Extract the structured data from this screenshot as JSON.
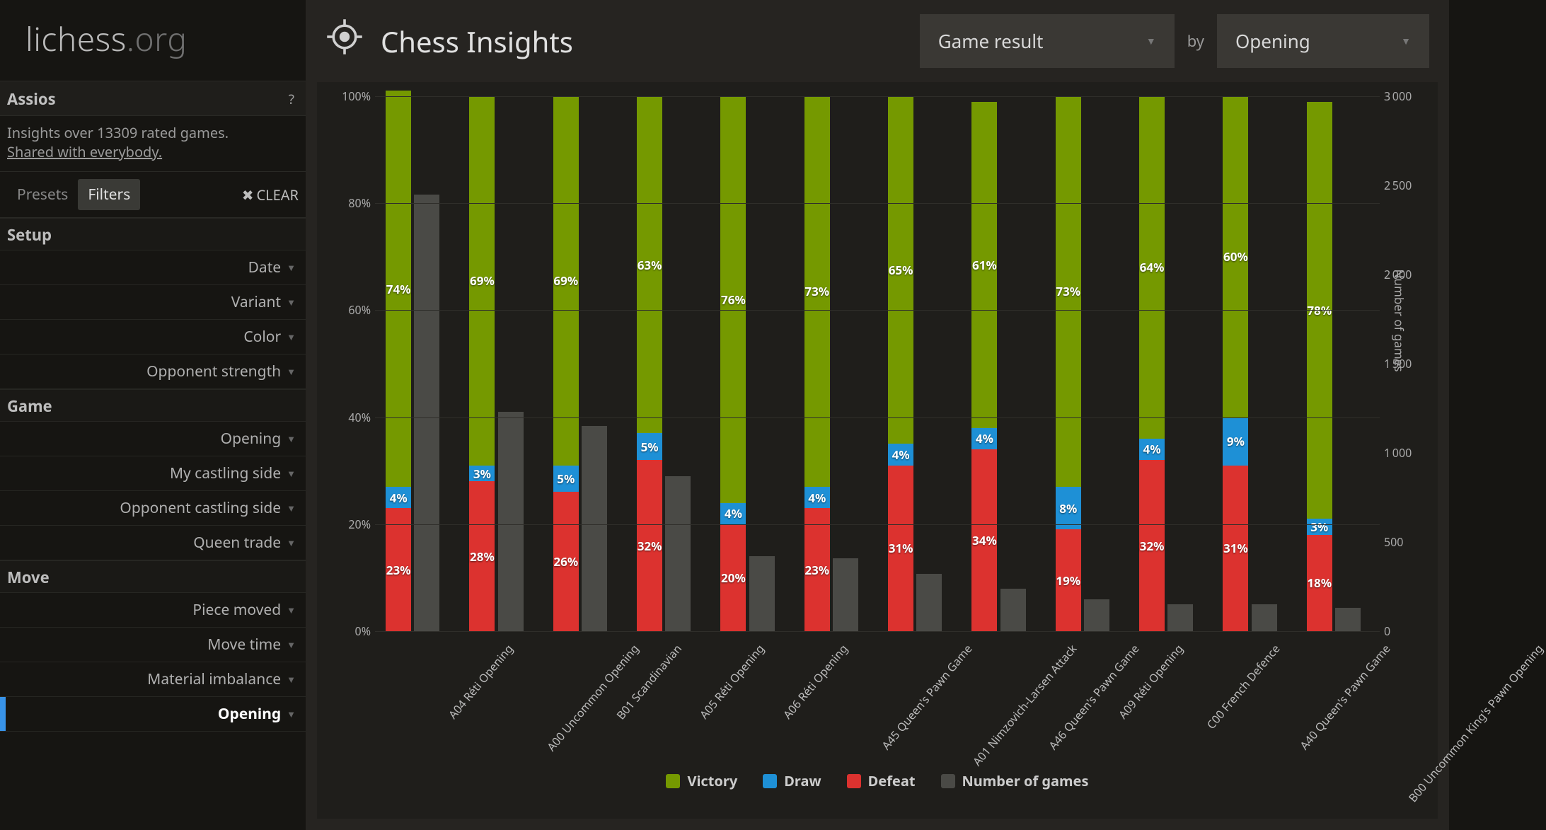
{
  "brand": {
    "name": "lichess",
    "suffix": ".org"
  },
  "sidebar": {
    "username": "Assios",
    "help": "?",
    "info_line": "Insights over 13309 rated games.",
    "shared_line": "Shared with everybody.",
    "tabs": {
      "presets": "Presets",
      "filters": "Filters"
    },
    "clear": "CLEAR",
    "sections": [
      {
        "title": "Setup",
        "items": [
          "Date",
          "Variant",
          "Color",
          "Opponent strength"
        ]
      },
      {
        "title": "Game",
        "items": [
          "Opening",
          "My castling side",
          "Opponent castling side",
          "Queen trade"
        ]
      },
      {
        "title": "Move",
        "items": [
          "Piece moved",
          "Move time",
          "Material imbalance",
          "Opening"
        ]
      }
    ],
    "selected": "Opening"
  },
  "header": {
    "title": "Chess Insights",
    "metric": "Game result",
    "by": "by",
    "dimension": "Opening"
  },
  "chart": {
    "type": "stacked-bar-with-secondary",
    "colors": {
      "victory": "#759900",
      "draw": "#1e90d6",
      "defeat": "#dc322f",
      "count": "#4a4a46",
      "grid": "#2f2e2a",
      "bg": "#1f1e1b"
    },
    "y_left": {
      "min": 0,
      "max": 100,
      "step": 20,
      "suffix": "%"
    },
    "y_right": {
      "min": 0,
      "max": 3000,
      "step": 500,
      "label": "Number of games"
    },
    "legend": [
      "Victory",
      "Draw",
      "Defeat",
      "Number of games"
    ],
    "categories": [
      {
        "label": "A04 Réti Opening",
        "victory": 74,
        "draw": 4,
        "defeat": 23,
        "games": 2450
      },
      {
        "label": "A00 Uncommon Opening",
        "victory": 69,
        "draw": 3,
        "defeat": 28,
        "games": 1230
      },
      {
        "label": "B01 Scandinavian",
        "victory": 69,
        "draw": 5,
        "defeat": 26,
        "games": 1150
      },
      {
        "label": "A05 Réti Opening",
        "victory": 63,
        "draw": 5,
        "defeat": 32,
        "games": 870
      },
      {
        "label": "A06 Réti Opening",
        "victory": 76,
        "draw": 4,
        "defeat": 20,
        "games": 420
      },
      {
        "label": "A45 Queen's Pawn Game",
        "victory": 73,
        "draw": 4,
        "defeat": 23,
        "games": 410
      },
      {
        "label": "A01 Nimzovich-Larsen Attack",
        "victory": 65,
        "draw": 4,
        "defeat": 31,
        "games": 320
      },
      {
        "label": "A46 Queen's Pawn Game",
        "victory": 61,
        "draw": 4,
        "defeat": 34,
        "games": 240
      },
      {
        "label": "A09 Réti Opening",
        "victory": 73,
        "draw": 8,
        "defeat": 19,
        "games": 180
      },
      {
        "label": "C00 French Defence",
        "victory": 64,
        "draw": 4,
        "defeat": 32,
        "games": 150
      },
      {
        "label": "A40 Queen's Pawn Game",
        "victory": 60,
        "draw": 9,
        "defeat": 31,
        "games": 150
      },
      {
        "label": "B00 Uncommon King's Pawn Opening",
        "victory": 78,
        "draw": 3,
        "defeat": 18,
        "games": 130
      }
    ]
  }
}
